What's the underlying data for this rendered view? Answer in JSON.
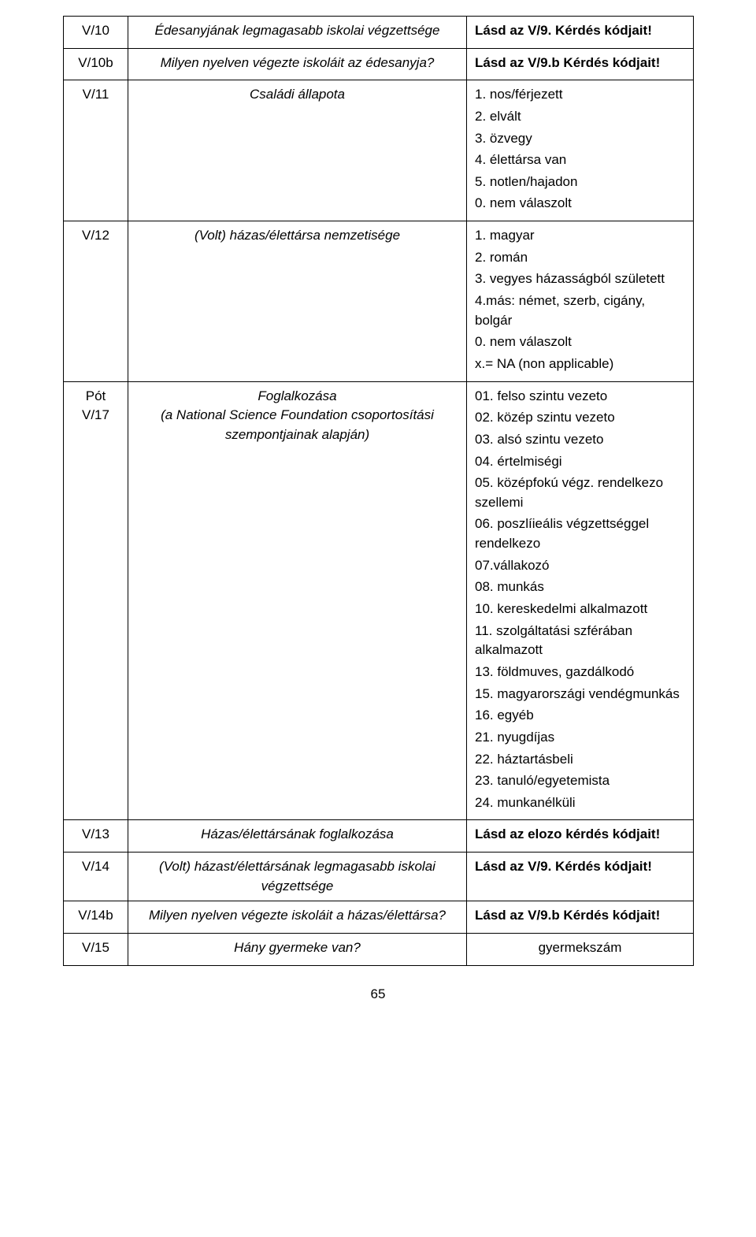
{
  "rows": [
    {
      "code": "V/10",
      "question": "Édesanyjának legmagasabb iskolai végzettsége",
      "answer": [
        {
          "text": "Lásd az V/9. Kérdés kódjait!",
          "bold": true
        }
      ]
    },
    {
      "code": "V/10b",
      "question": "Milyen nyelven végezte iskoláit az édesanyja?",
      "answer": [
        {
          "text": "Lásd az V/9.b Kérdés kódjait!",
          "bold": true
        }
      ]
    },
    {
      "code": "V/11",
      "question": "Családi állapota",
      "answer": [
        {
          "text": "1. nos/férjezett"
        },
        {
          "text": "2. elvált"
        },
        {
          "text": "3. özvegy"
        },
        {
          "text": "4. élettársa van"
        },
        {
          "text": "5. notlen/hajadon"
        },
        {
          "text": "0. nem válaszolt"
        }
      ]
    },
    {
      "code": "V/12",
      "question": "(Volt) házas/élettársa nemzetisége",
      "answer": [
        {
          "text": "1. magyar"
        },
        {
          "text": "2. román"
        },
        {
          "text": "3. vegyes házasságból született"
        },
        {
          "text": "4.más: német, szerb, cigány, bolgár"
        },
        {
          "text": "0. nem válaszolt"
        },
        {
          "text": "x.= NA (non applicable)"
        }
      ]
    },
    {
      "code": "Pót V/17",
      "question": "Foglalkozása\n(a National Science Foundation csoportosítási szempontjainak alapján)",
      "answer": [
        {
          "text": "01. felso szintu vezeto"
        },
        {
          "text": "02. közép szintu vezeto"
        },
        {
          "text": "03. alsó szintu vezeto"
        },
        {
          "text": "04. értelmiségi"
        },
        {
          "text": "05. középfokú végz. rendelkezo szellemi"
        },
        {
          "text": "06. poszlíieális végzettséggel rendelkezo"
        },
        {
          "text": "07.vállakozó"
        },
        {
          "text": "08. munkás"
        },
        {
          "text": "10. kereskedelmi alkalmazott"
        },
        {
          "text": "11. szolgáltatási szférában alkalmazott"
        },
        {
          "text": "13. földmuves, gazdálkodó"
        },
        {
          "text": "15. magyarországi vendégmunkás"
        },
        {
          "text": "16. egyéb"
        },
        {
          "text": "21. nyugdíjas"
        },
        {
          "text": "22. háztartásbeli"
        },
        {
          "text": "23. tanuló/egyetemista"
        },
        {
          "text": "24. munkanélküli"
        }
      ]
    },
    {
      "code": "V/13",
      "question": "Házas/élettársának foglalkozása",
      "answer": [
        {
          "text": "Lásd az elozo kérdés kódjait!",
          "bold": true
        }
      ]
    },
    {
      "code": "V/14",
      "question": "(Volt) házast/élettársának legmagasabb iskolai végzettsége",
      "answer": [
        {
          "text": "Lásd az V/9. Kérdés kódjait!",
          "bold": true
        }
      ]
    },
    {
      "code": "V/14b",
      "question": "Milyen nyelven végezte iskoláit a házas/élettársa?",
      "answer": [
        {
          "text": "Lásd az V/9.b Kérdés kódjait!",
          "bold": true
        }
      ]
    },
    {
      "code": "V/15",
      "question": "Hány gyermeke van?",
      "answer": [
        {
          "text": "gyermekszám",
          "center": true
        }
      ]
    }
  ],
  "pagenum": "65"
}
